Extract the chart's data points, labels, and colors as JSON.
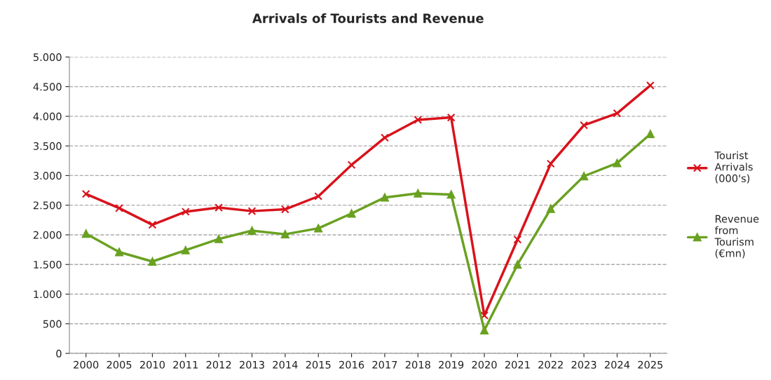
{
  "chart_data": {
    "type": "line",
    "title": "Arrivals of Tourists and Revenue",
    "categories": [
      "2000",
      "2005",
      "2010",
      "2011",
      "2012",
      "2013",
      "2014",
      "2015",
      "2016",
      "2017",
      "2018",
      "2019",
      "2020",
      "2021",
      "2022",
      "2023",
      "2024",
      "2025"
    ],
    "series": [
      {
        "name": "Tourist\nArrivals\n(000's)",
        "color": "#d9121b",
        "marker": "cross",
        "values": [
          2690,
          2450,
          2170,
          2390,
          2460,
          2400,
          2430,
          2650,
          3180,
          3640,
          3940,
          3980,
          640,
          1920,
          3200,
          3850,
          4050,
          4520
        ]
      },
      {
        "name": "Revenue\nfrom\nTourism\n(€mn)",
        "color": "#6aa121",
        "marker": "triangle",
        "values": [
          2020,
          1710,
          1550,
          1740,
          1930,
          2070,
          2010,
          2110,
          2360,
          2630,
          2700,
          2680,
          390,
          1500,
          2440,
          2990,
          3210,
          3700
        ]
      }
    ],
    "ylim": [
      0,
      5000
    ],
    "yticks": [
      0,
      500,
      {
        "value": 1000,
        "label": "1.000"
      },
      {
        "value": 1500,
        "label": "1.500"
      },
      {
        "value": 2000,
        "label": "2.000"
      },
      {
        "value": 2500,
        "label": "2.500"
      },
      {
        "value": 3000,
        "label": "3.000"
      },
      {
        "value": 3500,
        "label": "3.500"
      },
      {
        "value": 4000,
        "label": "4.000"
      },
      {
        "value": 4500,
        "label": "4.500"
      },
      {
        "value": 5000,
        "label": "5.000"
      }
    ],
    "grid": "y",
    "legend": "right",
    "line_style": "solid"
  }
}
